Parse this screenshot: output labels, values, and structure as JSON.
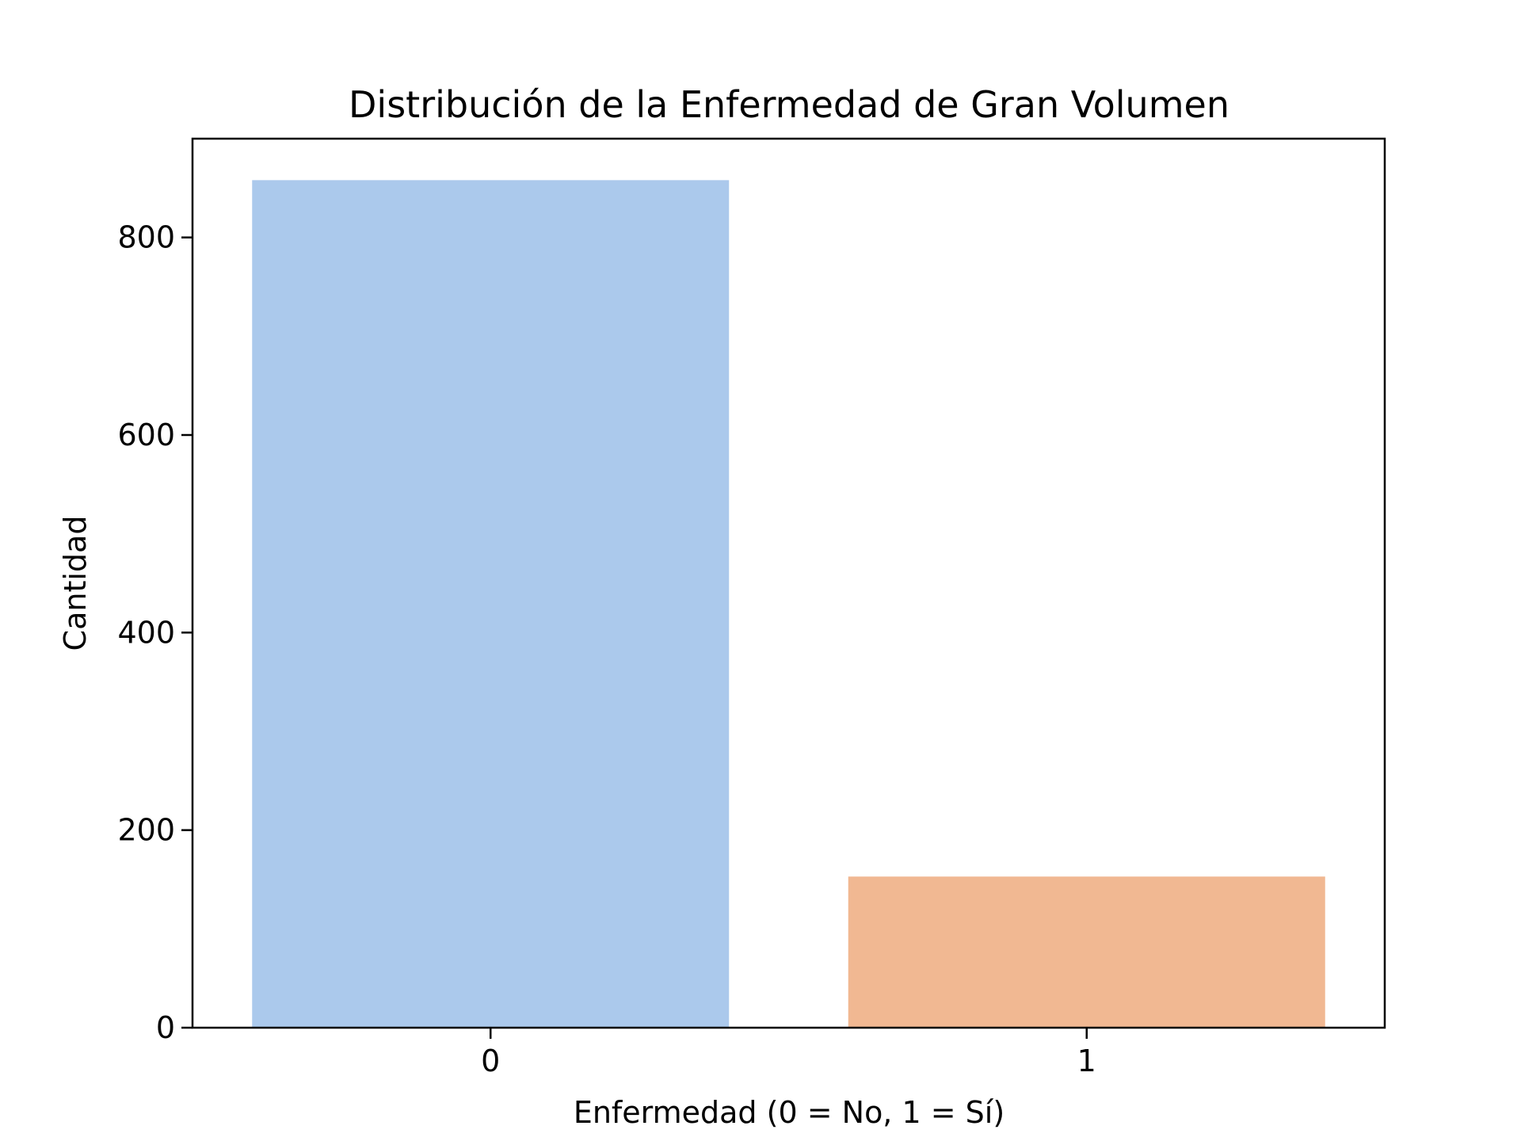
{
  "chart_data": {
    "type": "bar",
    "title": "Distribución de la Enfermedad de Gran Volumen",
    "xlabel": "Enfermedad (0 = No, 1 = Sí)",
    "ylabel": "Cantidad",
    "categories": [
      "0",
      "1"
    ],
    "values": [
      858,
      153
    ],
    "colors": [
      "#abc9ec",
      "#f1b892"
    ],
    "ylim": [
      0,
      900
    ],
    "yticks": [
      0,
      200,
      400,
      600,
      800
    ],
    "ytick_labels": [
      "0",
      "200",
      "400",
      "600",
      "800"
    ],
    "grid": false,
    "legend": "none"
  }
}
